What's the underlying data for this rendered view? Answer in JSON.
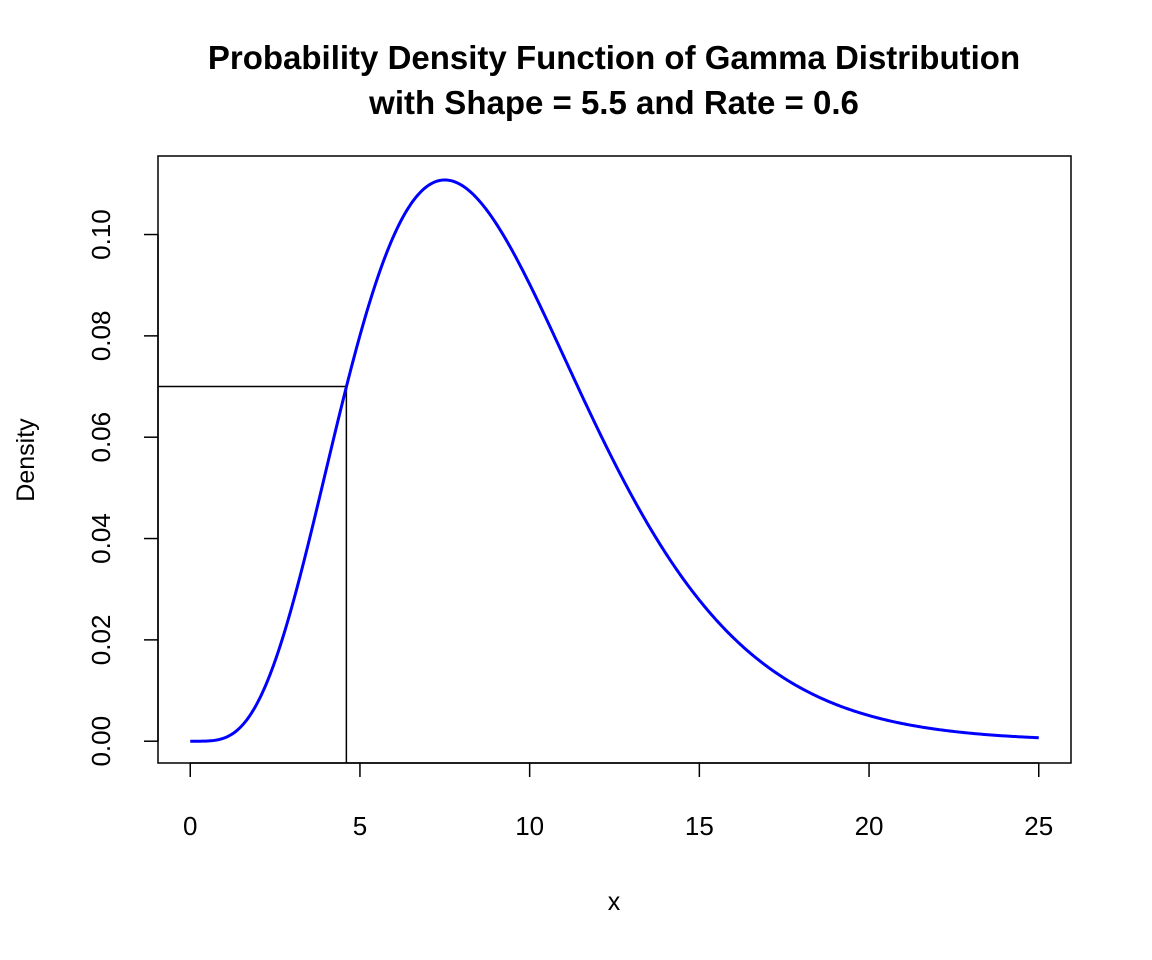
{
  "chart_data": {
    "type": "line",
    "title": "Probability Density Function of Gamma Distribution",
    "subtitle": "with Shape = 5.5 and Rate = 0.6",
    "xlabel": "x",
    "ylabel": "Density",
    "distribution": {
      "name": "gamma",
      "shape": 5.5,
      "rate": 0.6
    },
    "x_range": [
      0,
      25
    ],
    "xlim": [
      -0.95,
      25.95
    ],
    "ylim": [
      -0.0043,
      0.1155
    ],
    "xticks": [
      0,
      5,
      10,
      15,
      20,
      25
    ],
    "xtick_labels": [
      "0",
      "5",
      "10",
      "15",
      "20",
      "25"
    ],
    "yticks": [
      0,
      0.02,
      0.04,
      0.06,
      0.08,
      0.1
    ],
    "ytick_labels": [
      "0.00",
      "0.02",
      "0.04",
      "0.06",
      "0.08",
      "0.10"
    ],
    "series": [
      {
        "name": "density",
        "color": "#0000ff"
      }
    ],
    "reference_point": {
      "x": 4.6,
      "y": 0.07,
      "color": "#000000"
    },
    "grid": false
  }
}
